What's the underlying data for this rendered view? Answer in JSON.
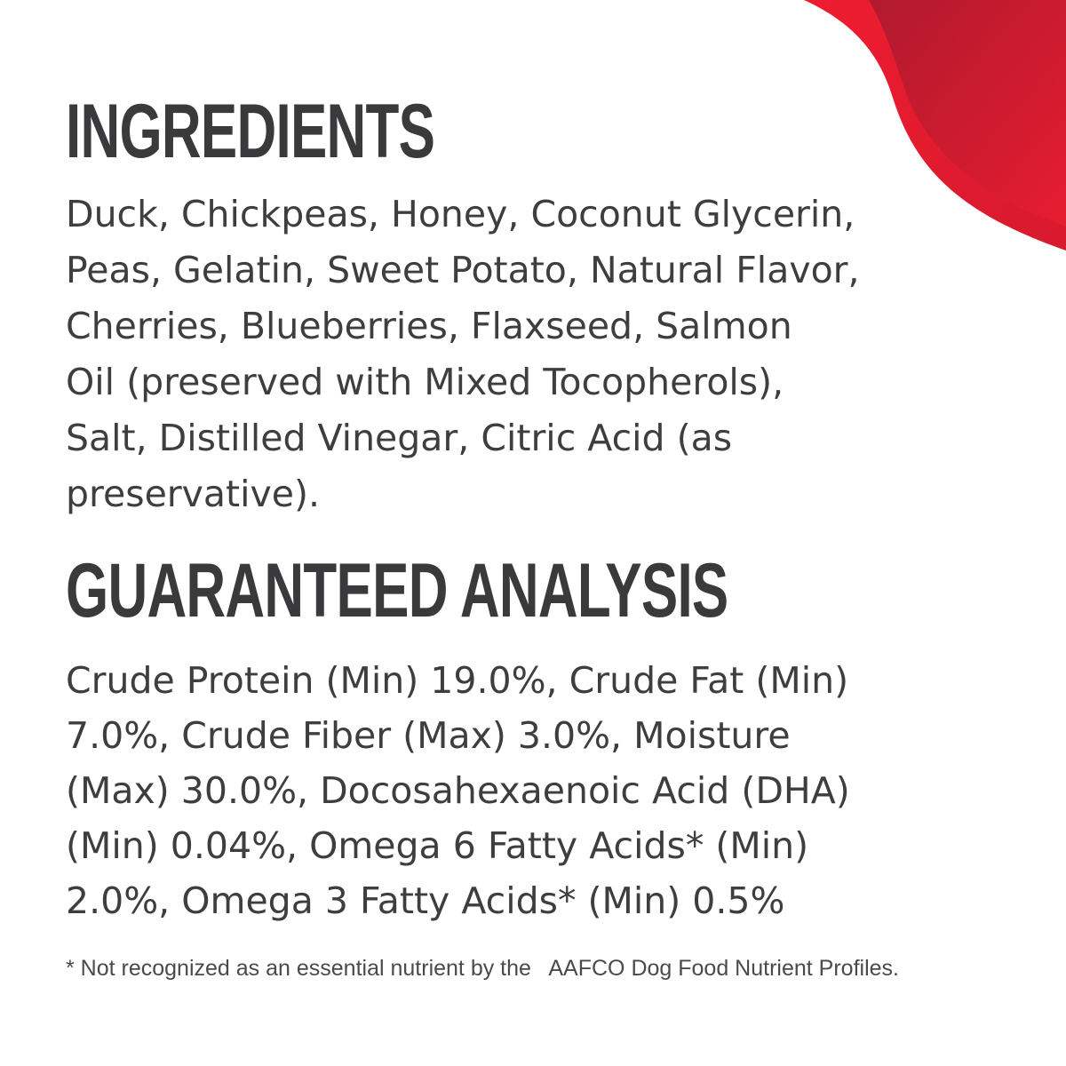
{
  "colors": {
    "text": "#3a3a3c",
    "accent_red": "#e31b2e",
    "accent_dark_red": "#a8182c",
    "background": "#ffffff"
  },
  "decoration": "red-swoosh-corner",
  "ingredients": {
    "heading": "INGREDIENTS",
    "lines": [
      "Duck, Chickpeas, Honey, Coconut Glycerin,",
      "Peas, Gelatin, Sweet Potato, Natural Flavor,",
      "Cherries, Blueberries, Flaxseed, Salmon",
      "Oil (preserved with Mixed Tocopherols),",
      "Salt, Distilled Vinegar, Citric Acid (as",
      "preservative)."
    ]
  },
  "analysis": {
    "heading": "GUARANTEED ANALYSIS",
    "lines": [
      "Crude Protein (Min) 19.0%, Crude Fat (Min)",
      "7.0%, Crude Fiber (Max) 3.0%, Moisture",
      "(Max) 30.0%, Docosahexaenoic Acid (DHA)",
      "(Min) 0.04%, Omega 6 Fatty Acids* (Min)",
      "2.0%, Omega 3 Fatty Acids* (Min) 0.5%"
    ]
  },
  "footnote": "* Not recognized as an essential nutrient by the   AAFCO Dog Food Nutrient Profiles."
}
